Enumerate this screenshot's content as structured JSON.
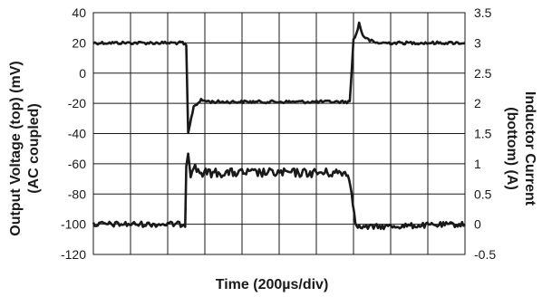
{
  "chart_data": {
    "type": "line",
    "xlabel": "Time (200µs/div)",
    "ylabel_left": [
      "Output Voltage (top) (mV)",
      "(AC coupled)"
    ],
    "ylabel_right": [
      "Inductor Current",
      "(bottom)  (A)"
    ],
    "x_divisions": 10,
    "ylim_left": [
      -120,
      40
    ],
    "ylim_right": [
      -0.5,
      3.5
    ],
    "yticks_left": [
      40,
      20,
      0,
      -20,
      -40,
      -60,
      -80,
      -100,
      -120
    ],
    "yticks_right": [
      3.5,
      3,
      2.5,
      2,
      1.5,
      1,
      0.5,
      0,
      -0.5
    ],
    "grid": true,
    "series": [
      {
        "axis": "left",
        "color": "#1a1a1a",
        "x": [
          0,
          2.4,
          2.5,
          2.55,
          2.6,
          2.7,
          2.9,
          3.2,
          3.6,
          6.9,
          7.0,
          7.08,
          7.15,
          7.25,
          7.4,
          7.6,
          10
        ],
        "y": [
          20,
          20,
          18,
          -40,
          -34,
          -22,
          -18,
          -19,
          -19,
          -19,
          22,
          26,
          33,
          25,
          22,
          20,
          20
        ]
      },
      {
        "axis": "right",
        "color": "#1a1a1a",
        "x": [
          0,
          2.47,
          2.5,
          2.55,
          2.62,
          2.7,
          2.9,
          6.85,
          6.95,
          7.05,
          7.15,
          10
        ],
        "y": [
          0,
          0,
          1.0,
          1.2,
          0.85,
          0.95,
          0.85,
          0.85,
          0.5,
          0.05,
          -0.05,
          0
        ]
      }
    ]
  }
}
